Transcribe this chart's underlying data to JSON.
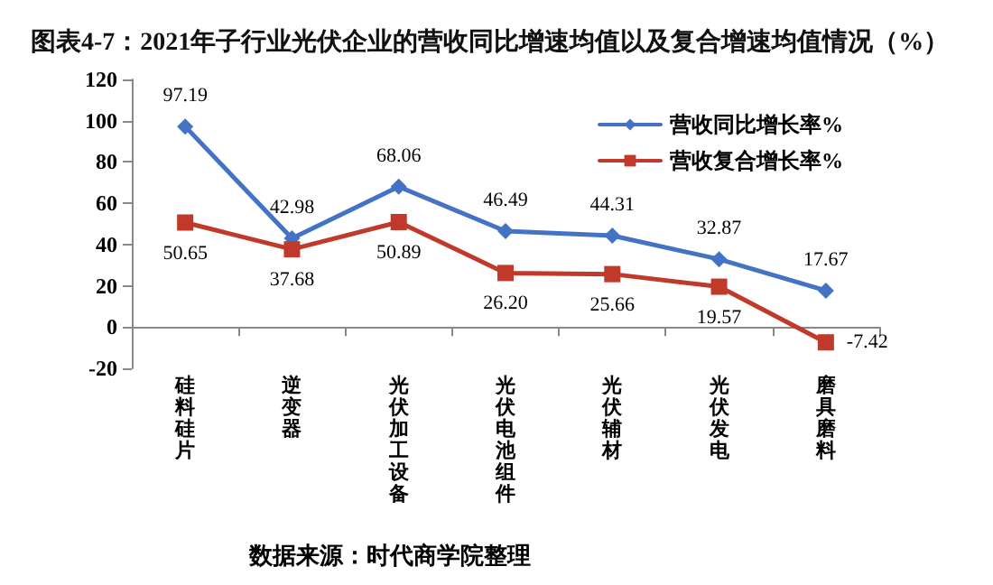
{
  "chart_data": {
    "type": "line",
    "title": "图表4-7：2021年子行业光伏企业的营收同比增速均值以及复合增速均值情况（%）",
    "categories": [
      "硅料硅片",
      "逆变器",
      "光伏加工设备",
      "光伏电池组件",
      "光伏辅材",
      "光伏发电",
      "磨具磨料"
    ],
    "series": [
      {
        "name": "营收同比增长率%",
        "color": "#4472c4",
        "marker": "diamond",
        "values": [
          97.19,
          42.98,
          68.06,
          46.49,
          44.31,
          32.87,
          17.67
        ],
        "value_labels": [
          "97.19",
          "42.98",
          "68.06",
          "46.49",
          "44.31",
          "32.87",
          "17.67"
        ]
      },
      {
        "name": "营收复合增长率%",
        "color": "#c0392b",
        "marker": "square",
        "values": [
          50.65,
          37.68,
          50.89,
          26.2,
          25.66,
          19.57,
          -7.42
        ],
        "value_labels": [
          "50.65",
          "37.68",
          "50.89",
          "26.20",
          "25.66",
          "19.57",
          "-7.42"
        ]
      }
    ],
    "ylim": [
      -20,
      120
    ],
    "yticks": [
      -20,
      0,
      20,
      40,
      60,
      80,
      100,
      120
    ],
    "legend": "top right",
    "annotations": [
      "数据来源：时代商学院整理"
    ]
  }
}
